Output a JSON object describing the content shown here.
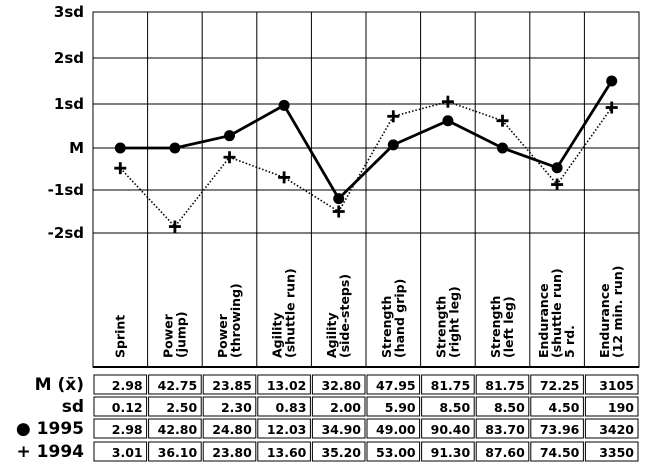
{
  "chart_data": {
    "type": "line",
    "y_ticks": [
      "3sd",
      "2sd",
      "1sd",
      "M",
      "-1sd",
      "-2sd"
    ],
    "ylim": [
      -2,
      3
    ],
    "categories": [
      [
        "Sprint"
      ],
      [
        "Power",
        "(jump)"
      ],
      [
        "Power",
        "(throwing)"
      ],
      [
        "Agility",
        "(shuttle run)"
      ],
      [
        "Agility",
        "(side-steps)"
      ],
      [
        "Strength",
        "(hand grip)"
      ],
      [
        "Strength",
        "(right leg)"
      ],
      [
        "Strength",
        "(left leg)"
      ],
      [
        "Endurance",
        "(shuttle run)",
        "5 rd."
      ],
      [
        "Endurance",
        "(12 min. run)"
      ]
    ],
    "series": [
      {
        "name": "1995",
        "marker": "●",
        "style": "solid",
        "values": [
          0.0,
          0.0,
          0.28,
          0.97,
          -1.2,
          0.07,
          0.62,
          0.0,
          -0.47,
          1.5
        ]
      },
      {
        "name": "1994",
        "marker": "+",
        "style": "dotted",
        "values": [
          -0.48,
          -1.85,
          -0.22,
          -0.7,
          -1.5,
          0.72,
          1.05,
          0.62,
          -0.87,
          0.92
        ]
      }
    ],
    "grid": true,
    "table": {
      "rows": [
        {
          "label": "M (x̄)",
          "values": [
            "2.98",
            "42.75",
            "23.85",
            "13.02",
            "32.80",
            "47.95",
            "81.75",
            "81.75",
            "72.25",
            "3105"
          ]
        },
        {
          "label": "sd",
          "values": [
            "0.12",
            "2.50",
            "2.30",
            "0.83",
            "2.00",
            "5.90",
            "8.50",
            "8.50",
            "4.50",
            "190"
          ]
        },
        {
          "label": "● 1995",
          "values": [
            "2.98",
            "42.80",
            "24.80",
            "12.03",
            "34.90",
            "49.00",
            "90.40",
            "83.70",
            "73.96",
            "3420"
          ]
        },
        {
          "label": "+ 1994",
          "values": [
            "3.01",
            "36.10",
            "23.80",
            "13.60",
            "35.20",
            "53.00",
            "91.30",
            "87.60",
            "74.50",
            "3350"
          ]
        }
      ]
    }
  }
}
